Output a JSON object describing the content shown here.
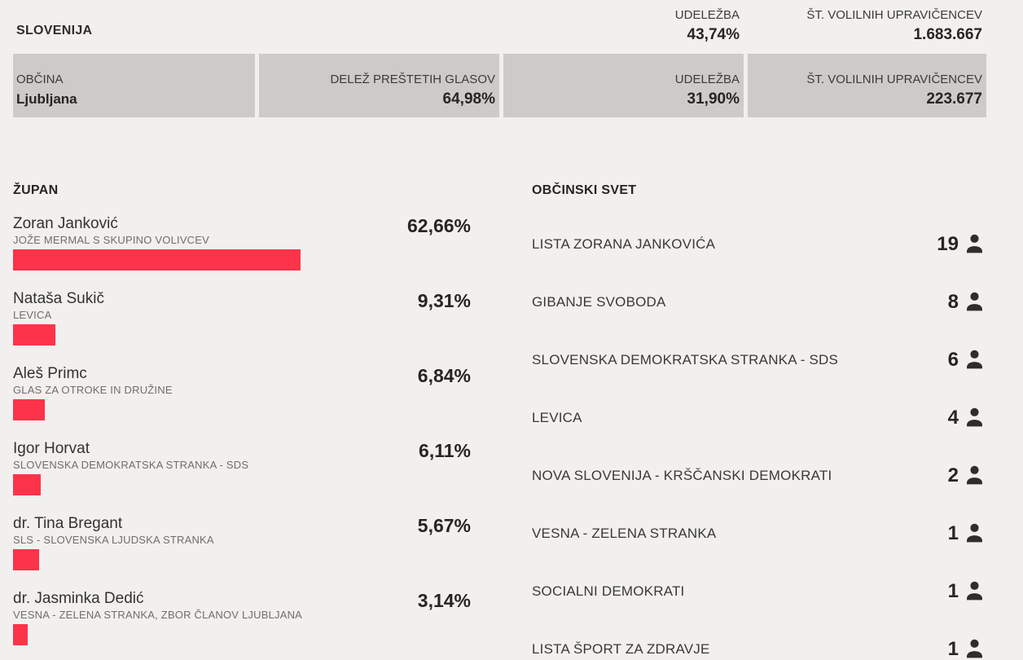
{
  "national": {
    "name": "SLOVENIJA",
    "turnout_label": "UDELEŽBA",
    "turnout_value": "43,74%",
    "eligible_label": "ŠT. VOLILNIH UPRAVIČENCEV",
    "eligible_value": "1.683.667"
  },
  "municipality": {
    "label": "OBČINA",
    "name": "Ljubljana",
    "counted_label": "DELEŽ PREŠTETIH GLASOV",
    "counted_value": "64,98%",
    "turnout_label": "UDELEŽBA",
    "turnout_value": "31,90%",
    "eligible_label": "ŠT. VOLILNIH UPRAVIČENCEV",
    "eligible_value": "223.677"
  },
  "mayor": {
    "title": "ŽUPAN",
    "candidates": [
      {
        "name": "Zoran Janković",
        "party": "JOŽE MERMAL S SKUPINO VOLIVCEV",
        "pct": 62.66,
        "pct_label": "62,66%"
      },
      {
        "name": "Nataša Sukič",
        "party": "LEVICA",
        "pct": 9.31,
        "pct_label": "9,31%"
      },
      {
        "name": "Aleš Primc",
        "party": "GLAS ZA OTROKE IN DRUŽINE",
        "pct": 6.84,
        "pct_label": "6,84%"
      },
      {
        "name": "Igor Horvat",
        "party": "SLOVENSKA DEMOKRATSKA STRANKA - SDS",
        "pct": 6.11,
        "pct_label": "6,11%"
      },
      {
        "name": "dr. Tina Bregant",
        "party": "SLS - SLOVENSKA LJUDSKA STRANKA",
        "pct": 5.67,
        "pct_label": "5,67%"
      },
      {
        "name": "dr. Jasminka Dedić",
        "party": "VESNA - ZELENA STRANKA, ZBOR ČLANOV LJUBLJANA",
        "pct": 3.14,
        "pct_label": "3,14%"
      }
    ]
  },
  "council": {
    "title": "OBČINSKI SVET",
    "parties": [
      {
        "name": "LISTA ZORANA JANKOVIĆA",
        "seats": "19"
      },
      {
        "name": "GIBANJE SVOBODA",
        "seats": "8"
      },
      {
        "name": "SLOVENSKA DEMOKRATSKA STRANKA - SDS",
        "seats": "6"
      },
      {
        "name": "LEVICA",
        "seats": "4"
      },
      {
        "name": "NOVA SLOVENIJA - KRŠČANSKI DEMOKRATI",
        "seats": "2"
      },
      {
        "name": "VESNA - ZELENA STRANKA",
        "seats": "1"
      },
      {
        "name": "SOCIALNI DEMOKRATI",
        "seats": "1"
      },
      {
        "name": "LISTA ŠPORT ZA ZDRAVJE",
        "seats": "1"
      }
    ]
  },
  "colors": {
    "bar_red": "#fc3349",
    "cell_gray": "#cccbc8",
    "page_background": "#f1f0ee",
    "text_dark": "#262523",
    "text_muted": "#6f6e6b"
  },
  "chart_data": [
    {
      "type": "bar",
      "title": "ŽUPAN",
      "orientation": "horizontal",
      "categories": [
        "Zoran Janković",
        "Nataša Sukič",
        "Aleš Primc",
        "Igor Horvat",
        "dr. Tina Bregant",
        "dr. Jasminka Dedić"
      ],
      "series_labels": [
        "JOŽE MERMAL S SKUPINO VOLIVCEV",
        "LEVICA",
        "GLAS ZA OTROKE IN DRUŽINE",
        "SLOVENSKA DEMOKRATSKA STRANKA - SDS",
        "SLS - SLOVENSKA LJUDSKA STRANKA",
        "VESNA - ZELENA STRANKA, ZBOR ČLANOV LJUBLJANA"
      ],
      "values": [
        62.66,
        9.31,
        6.84,
        6.11,
        5.67,
        3.14
      ],
      "data_labels": [
        "62,66%",
        "9,31%",
        "6,84%",
        "6,11%",
        "5,67%",
        "3,14%"
      ],
      "xlabel": "",
      "ylabel": "",
      "xlim": [
        0,
        100
      ],
      "unit": "%",
      "grid": false,
      "legend": false,
      "bar_color": "#fc3349"
    },
    {
      "type": "table",
      "title": "OBČINSKI SVET",
      "categories": [
        "LISTA ZORANA JANKOVIĆA",
        "GIBANJE SVOBODA",
        "SLOVENSKA DEMOKRATSKA STRANKA - SDS",
        "LEVICA",
        "NOVA SLOVENIJA - KRŠČANSKI DEMOKRATI",
        "VESNA - ZELENA STRANKA",
        "SOCIALNI DEMOKRATI",
        "LISTA ŠPORT ZA ZDRAVJE"
      ],
      "values": [
        19,
        8,
        6,
        4,
        2,
        1,
        1,
        1
      ],
      "unit": "seats"
    }
  ]
}
